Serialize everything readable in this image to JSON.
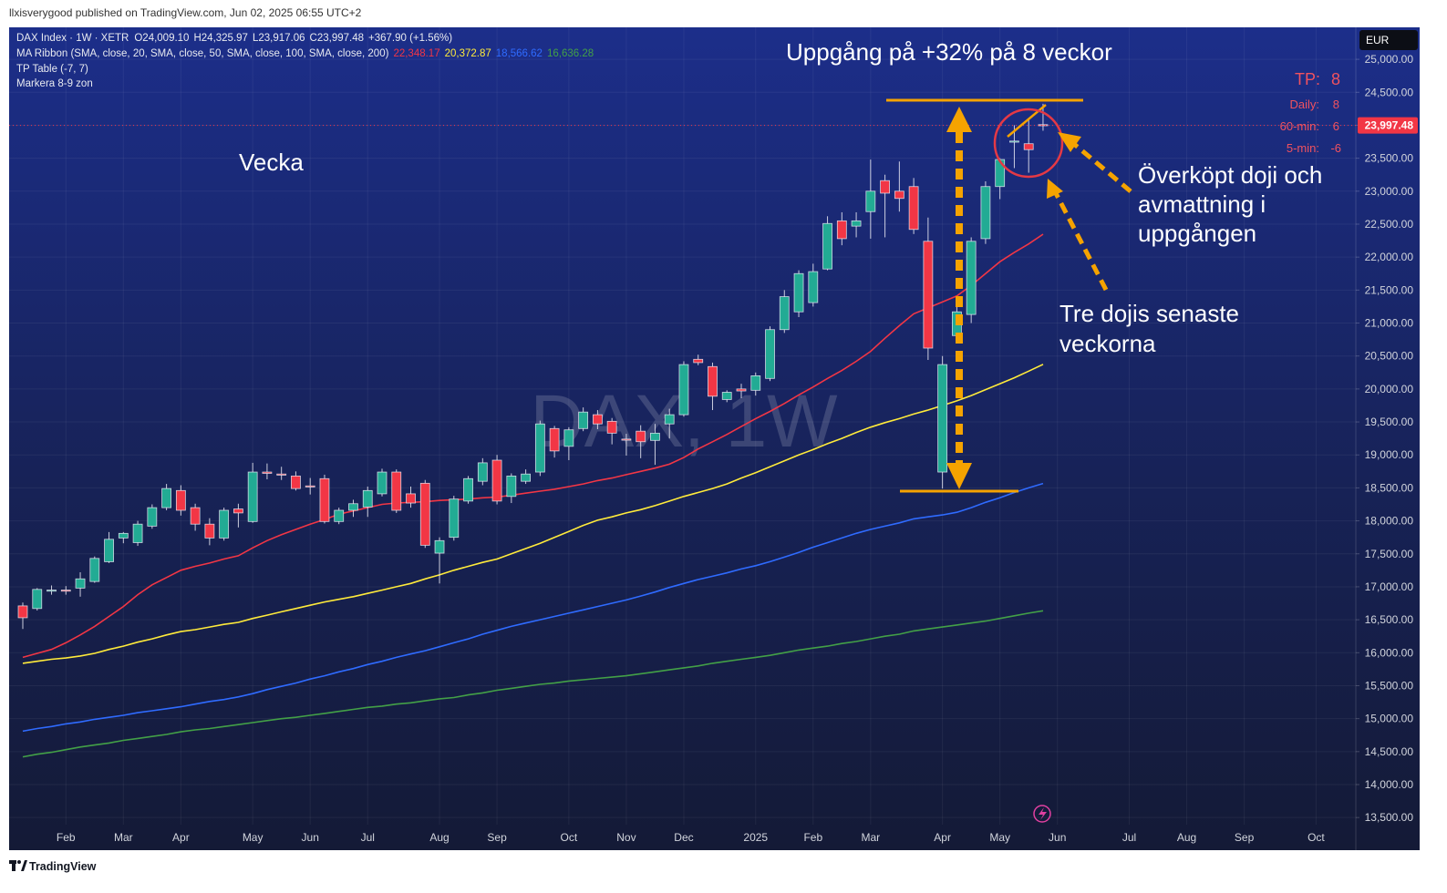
{
  "header": {
    "publisher": "llxisverygood published on TradingView.com, Jun 02, 2025 06:55 UTC+2"
  },
  "footer": {
    "brand": "TradingView"
  },
  "chart_data": {
    "type": "candlestick",
    "title": "DAX Index · 1W · XETR",
    "watermark": "DAX, 1W",
    "currency": "EUR",
    "legend": {
      "ohlc": [
        {
          "key": "O",
          "text": "24,009.10"
        },
        {
          "key": "H",
          "text": "24,325.97"
        },
        {
          "key": "L",
          "text": "23,917.06"
        },
        {
          "key": "C",
          "text": "23,997.48"
        }
      ],
      "change": "+367.90 (+1.56%)",
      "ma_label": "MA Ribbon (SMA, close, 20, SMA, close, 50, SMA, close, 100, SMA, close, 200)",
      "indicators": [
        "TP Table (-7, 7)",
        "Markera 8-9 zon"
      ]
    },
    "up_color": "#22ab94",
    "down_color": "#f23645",
    "categories": [
      null,
      null,
      null,
      "Feb",
      null,
      null,
      null,
      "Mar",
      null,
      null,
      null,
      "Apr",
      null,
      null,
      null,
      null,
      "May",
      null,
      null,
      null,
      "Jun",
      null,
      null,
      null,
      "Jul",
      null,
      null,
      null,
      null,
      "Aug",
      null,
      null,
      null,
      "Sep",
      null,
      null,
      null,
      null,
      "Oct",
      null,
      null,
      null,
      "Nov",
      null,
      null,
      null,
      "Dec",
      null,
      null,
      null,
      null,
      "2025",
      null,
      null,
      null,
      "Feb",
      null,
      null,
      null,
      "Mar",
      null,
      null,
      null,
      null,
      "Apr",
      null,
      null,
      null,
      "May",
      null,
      null,
      null,
      "Jun",
      null,
      null,
      null,
      null,
      "Jul",
      null,
      null,
      null,
      "Aug",
      null,
      null,
      null,
      "Sep",
      null,
      null,
      null,
      null,
      "Oct",
      null,
      null
    ],
    "open": [
      16710,
      16670,
      16940,
      16950,
      16980,
      17080,
      17380,
      17740,
      17670,
      17920,
      18200,
      18460,
      18200,
      17950,
      17740,
      18180,
      17990,
      18740,
      18710,
      18680,
      18530,
      18640,
      17990,
      18160,
      18210,
      18410,
      18740,
      18410,
      18570,
      17510,
      17750,
      18300,
      18600,
      18920,
      18370,
      18600,
      18740,
      19400,
      19130,
      19400,
      19610,
      19510,
      19240,
      19360,
      19220,
      19470,
      19610,
      20450,
      20340,
      19840,
      20000,
      19980,
      20160,
      20900,
      21170,
      21310,
      21820,
      22550,
      22470,
      22690,
      23160,
      23000,
      23070,
      22240,
      18740,
      20810,
      21130,
      22280,
      23070,
      23750,
      23720,
      24009.1,
      null,
      null,
      null,
      null,
      null,
      null,
      null,
      null,
      null,
      null,
      null,
      null,
      null,
      null,
      null,
      null,
      null,
      null,
      null,
      null,
      null
    ],
    "high": [
      16760,
      16980,
      17020,
      17010,
      17220,
      17460,
      17830,
      17830,
      18000,
      18250,
      18560,
      18540,
      18260,
      18040,
      18200,
      18260,
      18880,
      18870,
      18820,
      18750,
      18650,
      18700,
      18200,
      18320,
      18520,
      18790,
      18780,
      18520,
      18620,
      17750,
      18380,
      18680,
      18950,
      19000,
      18720,
      18780,
      19520,
      19440,
      19420,
      19720,
      19680,
      19560,
      19320,
      19450,
      19470,
      19700,
      20420,
      20520,
      20400,
      19980,
      20080,
      20250,
      20950,
      21500,
      21800,
      21900,
      22620,
      22680,
      22680,
      23480,
      23250,
      23450,
      23200,
      22600,
      20500,
      21300,
      22300,
      23150,
      23500,
      24000,
      24100,
      24325.97,
      null,
      null,
      null,
      null,
      null,
      null,
      null,
      null,
      null,
      null,
      null,
      null,
      null,
      null,
      null,
      null,
      null,
      null,
      null,
      null,
      null
    ],
    "low": [
      16360,
      16640,
      16880,
      16880,
      16850,
      17060,
      17360,
      17660,
      17620,
      17880,
      18160,
      18080,
      17850,
      17630,
      17700,
      17900,
      17970,
      18630,
      18620,
      18460,
      18400,
      17960,
      17950,
      18060,
      18060,
      18370,
      18120,
      18200,
      17590,
      17050,
      17700,
      18260,
      18540,
      18250,
      18270,
      18560,
      18680,
      18960,
      18920,
      19360,
      19390,
      19160,
      18990,
      18950,
      18850,
      19250,
      19580,
      20360,
      19680,
      19800,
      19860,
      19900,
      20120,
      20850,
      21090,
      21250,
      21800,
      22180,
      22300,
      22280,
      22300,
      22690,
      22350,
      20440,
      18490,
      20700,
      21000,
      22200,
      22880,
      23350,
      23280,
      23917.06,
      null,
      null,
      null,
      null,
      null,
      null,
      null,
      null,
      null,
      null,
      null,
      null,
      null,
      null,
      null,
      null,
      null,
      null,
      null,
      null,
      null
    ],
    "close": [
      16530,
      16960,
      16950,
      16940,
      17120,
      17430,
      17720,
      17810,
      17950,
      18200,
      18490,
      18160,
      17950,
      17740,
      18160,
      18120,
      18740,
      18720,
      18700,
      18490,
      18520,
      17990,
      18160,
      18260,
      18460,
      18740,
      18160,
      18270,
      17630,
      17700,
      18330,
      18640,
      18880,
      18300,
      18680,
      18710,
      19470,
      19060,
      19380,
      19650,
      19470,
      19330,
      19230,
      19200,
      19330,
      19610,
      20370,
      20400,
      19890,
      19950,
      19970,
      20200,
      20900,
      21400,
      21750,
      21780,
      22510,
      22280,
      22550,
      23000,
      22970,
      22890,
      22420,
      20620,
      20370,
      21170,
      22240,
      23070,
      23480,
      23760,
      23630,
      23997.48,
      null,
      null,
      null,
      null,
      null,
      null,
      null,
      null,
      null,
      null,
      null,
      null,
      null,
      null,
      null,
      null,
      null,
      null,
      null,
      null,
      null
    ],
    "last_price_label": "23,997.48",
    "overlays": [
      {
        "color": "#f23645",
        "last_label": "22,348.17",
        "values": [
          15930,
          15990,
          16050,
          16150,
          16270,
          16400,
          16550,
          16700,
          16880,
          17030,
          17140,
          17250,
          17310,
          17360,
          17420,
          17470,
          17590,
          17700,
          17790,
          17870,
          17950,
          18020,
          18100,
          18150,
          18200,
          18250,
          18270,
          18280,
          18290,
          18310,
          18320,
          18330,
          18350,
          18360,
          18390,
          18420,
          18450,
          18480,
          18520,
          18560,
          18610,
          18650,
          18700,
          18750,
          18800,
          18860,
          18960,
          19090,
          19200,
          19310,
          19430,
          19550,
          19660,
          19780,
          19910,
          20030,
          20160,
          20280,
          20420,
          20570,
          20770,
          20960,
          21140,
          21230,
          21320,
          21410,
          21570,
          21750,
          21930,
          22070,
          22200,
          22348.17,
          null,
          null,
          null,
          null,
          null,
          null,
          null,
          null,
          null,
          null,
          null,
          null,
          null,
          null,
          null,
          null,
          null,
          null,
          null,
          null,
          null
        ]
      },
      {
        "color": "#ffeb3b",
        "last_label": "20,372.87",
        "values": [
          15840,
          15870,
          15900,
          15920,
          15950,
          15990,
          16050,
          16100,
          16160,
          16210,
          16270,
          16320,
          16350,
          16390,
          16430,
          16460,
          16520,
          16570,
          16620,
          16670,
          16720,
          16770,
          16810,
          16850,
          16900,
          16950,
          17000,
          17050,
          17120,
          17180,
          17250,
          17310,
          17370,
          17420,
          17500,
          17580,
          17660,
          17750,
          17840,
          17930,
          18010,
          18060,
          18120,
          18170,
          18230,
          18300,
          18370,
          18430,
          18490,
          18560,
          18650,
          18730,
          18820,
          18910,
          19000,
          19080,
          19170,
          19250,
          19340,
          19420,
          19490,
          19550,
          19620,
          19680,
          19750,
          19820,
          19900,
          19990,
          20080,
          20170,
          20270,
          20372.87,
          null,
          null,
          null,
          null,
          null,
          null,
          null,
          null,
          null,
          null,
          null,
          null,
          null,
          null,
          null,
          null,
          null,
          null,
          null,
          null,
          null
        ]
      },
      {
        "color": "#2f6bff",
        "last_label": "18,566.62",
        "values": [
          14810,
          14850,
          14880,
          14920,
          14950,
          14990,
          15020,
          15050,
          15090,
          15120,
          15150,
          15180,
          15220,
          15260,
          15290,
          15330,
          15380,
          15440,
          15490,
          15540,
          15600,
          15650,
          15710,
          15760,
          15820,
          15870,
          15930,
          15980,
          16030,
          16090,
          16150,
          16210,
          16280,
          16340,
          16400,
          16450,
          16500,
          16550,
          16600,
          16650,
          16700,
          16750,
          16800,
          16860,
          16920,
          16990,
          17050,
          17110,
          17160,
          17210,
          17270,
          17320,
          17380,
          17450,
          17520,
          17600,
          17670,
          17740,
          17810,
          17870,
          17920,
          17970,
          18030,
          18060,
          18090,
          18130,
          18200,
          18280,
          18350,
          18430,
          18500,
          18566.62,
          null,
          null,
          null,
          null,
          null,
          null,
          null,
          null,
          null,
          null,
          null,
          null,
          null,
          null,
          null,
          null,
          null,
          null,
          null,
          null,
          null
        ]
      },
      {
        "color": "#43a047",
        "last_label": "16,636.28",
        "values": [
          14420,
          14460,
          14490,
          14530,
          14570,
          14600,
          14630,
          14670,
          14700,
          14730,
          14760,
          14800,
          14830,
          14850,
          14880,
          14910,
          14940,
          14970,
          15000,
          15020,
          15050,
          15080,
          15110,
          15140,
          15170,
          15190,
          15220,
          15240,
          15270,
          15300,
          15320,
          15360,
          15390,
          15430,
          15460,
          15490,
          15520,
          15540,
          15570,
          15590,
          15610,
          15630,
          15650,
          15680,
          15710,
          15740,
          15770,
          15800,
          15840,
          15870,
          15900,
          15930,
          15960,
          16000,
          16040,
          16070,
          16100,
          16140,
          16170,
          16210,
          16250,
          16280,
          16330,
          16360,
          16390,
          16420,
          16450,
          16480,
          16520,
          16560,
          16600,
          16636.28,
          null,
          null,
          null,
          null,
          null,
          null,
          null,
          null,
          null,
          null,
          null,
          null,
          null,
          null,
          null,
          null,
          null,
          null,
          null,
          null,
          null
        ]
      }
    ],
    "ylim": [
      13005,
      25485
    ],
    "yticks": [
      {
        "value": 13500,
        "label": "13,500.00"
      },
      {
        "value": 14000,
        "label": "14,000.00"
      },
      {
        "value": 14500,
        "label": "14,500.00"
      },
      {
        "value": 15000,
        "label": "15,000.00"
      },
      {
        "value": 15500,
        "label": "15,500.00"
      },
      {
        "value": 16000,
        "label": "16,000.00"
      },
      {
        "value": 16500,
        "label": "16,500.00"
      },
      {
        "value": 17000,
        "label": "17,000.00"
      },
      {
        "value": 17500,
        "label": "17,500.00"
      },
      {
        "value": 18000,
        "label": "18,000.00"
      },
      {
        "value": 18500,
        "label": "18,500.00"
      },
      {
        "value": 19000,
        "label": "19,000.00"
      },
      {
        "value": 19500,
        "label": "19,500.00"
      },
      {
        "value": 20000,
        "label": "20,000.00"
      },
      {
        "value": 20500,
        "label": "20,500.00"
      },
      {
        "value": 21000,
        "label": "21,000.00"
      },
      {
        "value": 21500,
        "label": "21,500.00"
      },
      {
        "value": 22000,
        "label": "22,000.00"
      },
      {
        "value": 22500,
        "label": "22,500.00"
      },
      {
        "value": 23000,
        "label": "23,000.00"
      },
      {
        "value": 23500,
        "label": "23,500.00"
      },
      {
        "value": 24000,
        "label": "24,000.00"
      },
      {
        "value": 24500,
        "label": "24,500.00"
      },
      {
        "value": 25000,
        "label": "25,000.00"
      }
    ],
    "grid": true,
    "tp_table": {
      "rows": [
        {
          "label": "TP:",
          "value": 8
        },
        {
          "label": "Daily:",
          "value": 8
        },
        {
          "label": "60-min:",
          "value": 6
        },
        {
          "label": "5-min:",
          "value": -6
        }
      ]
    },
    "annotations": {
      "headline": "Uppgång på +32% på 8 veckor",
      "period": "Vecka",
      "overbought": [
        "Överköpt doji och",
        "avmattning i",
        "uppgången"
      ],
      "dojis": [
        "Tre dojis senaste",
        "veckorna"
      ]
    }
  }
}
